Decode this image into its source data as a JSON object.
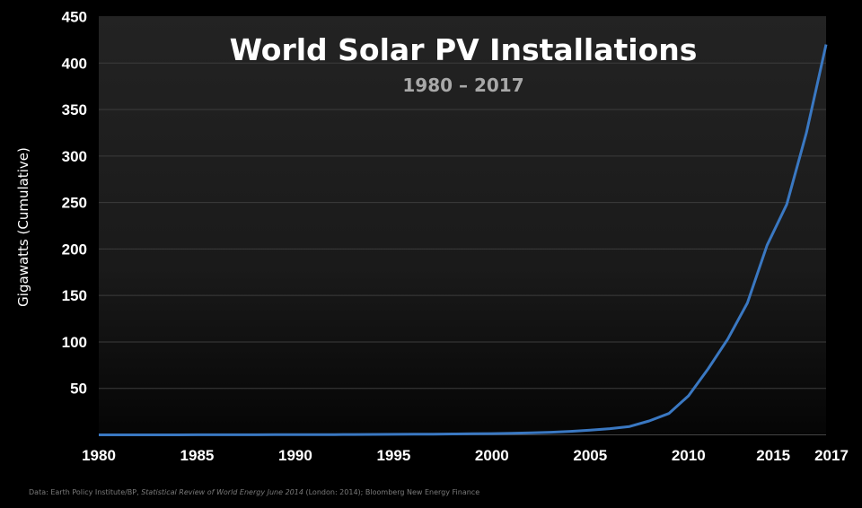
{
  "chart_data": {
    "type": "line",
    "title": "World Solar PV Installations",
    "subtitle": "1980 – 2017",
    "xlabel": "",
    "ylabel": "Gigawatts (Cumulative)",
    "xlim": [
      1980,
      2017
    ],
    "ylim": [
      0,
      450
    ],
    "x_ticks": [
      "1980",
      "1985",
      "1990",
      "1995",
      "2000",
      "2005",
      "2010",
      "2015",
      "2017"
    ],
    "y_ticks": [
      "50",
      "100",
      "150",
      "200",
      "250",
      "300",
      "350",
      "400",
      "450"
    ],
    "grid": true,
    "line_color": "#3a78c2",
    "series": [
      {
        "x": [
          1980,
          1981,
          1982,
          1983,
          1984,
          1985,
          1986,
          1987,
          1988,
          1989,
          1990,
          1991,
          1992,
          1993,
          1994,
          1995,
          1996,
          1997,
          1998,
          1999,
          2000,
          2001,
          2002,
          2003,
          2004,
          2005,
          2006,
          2007,
          2008,
          2009,
          2010,
          2011,
          2012,
          2013,
          2014,
          2015,
          2016,
          2017
        ],
        "y": [
          0,
          0,
          0,
          0,
          0,
          0.1,
          0.1,
          0.1,
          0.1,
          0.2,
          0.2,
          0.3,
          0.3,
          0.4,
          0.5,
          0.6,
          0.7,
          0.8,
          1.0,
          1.2,
          1.4,
          1.7,
          2.2,
          2.8,
          3.8,
          5.1,
          6.7,
          9,
          15,
          23,
          42,
          71,
          103,
          142,
          204,
          248,
          325,
          420
        ]
      }
    ],
    "source": {
      "prefix": "Data: Earth Policy Institute/BP, ",
      "italic": "Statistical Review of World Energy June 2014",
      "suffix": " (London: 2014); Bloomberg New Energy Finance"
    }
  }
}
